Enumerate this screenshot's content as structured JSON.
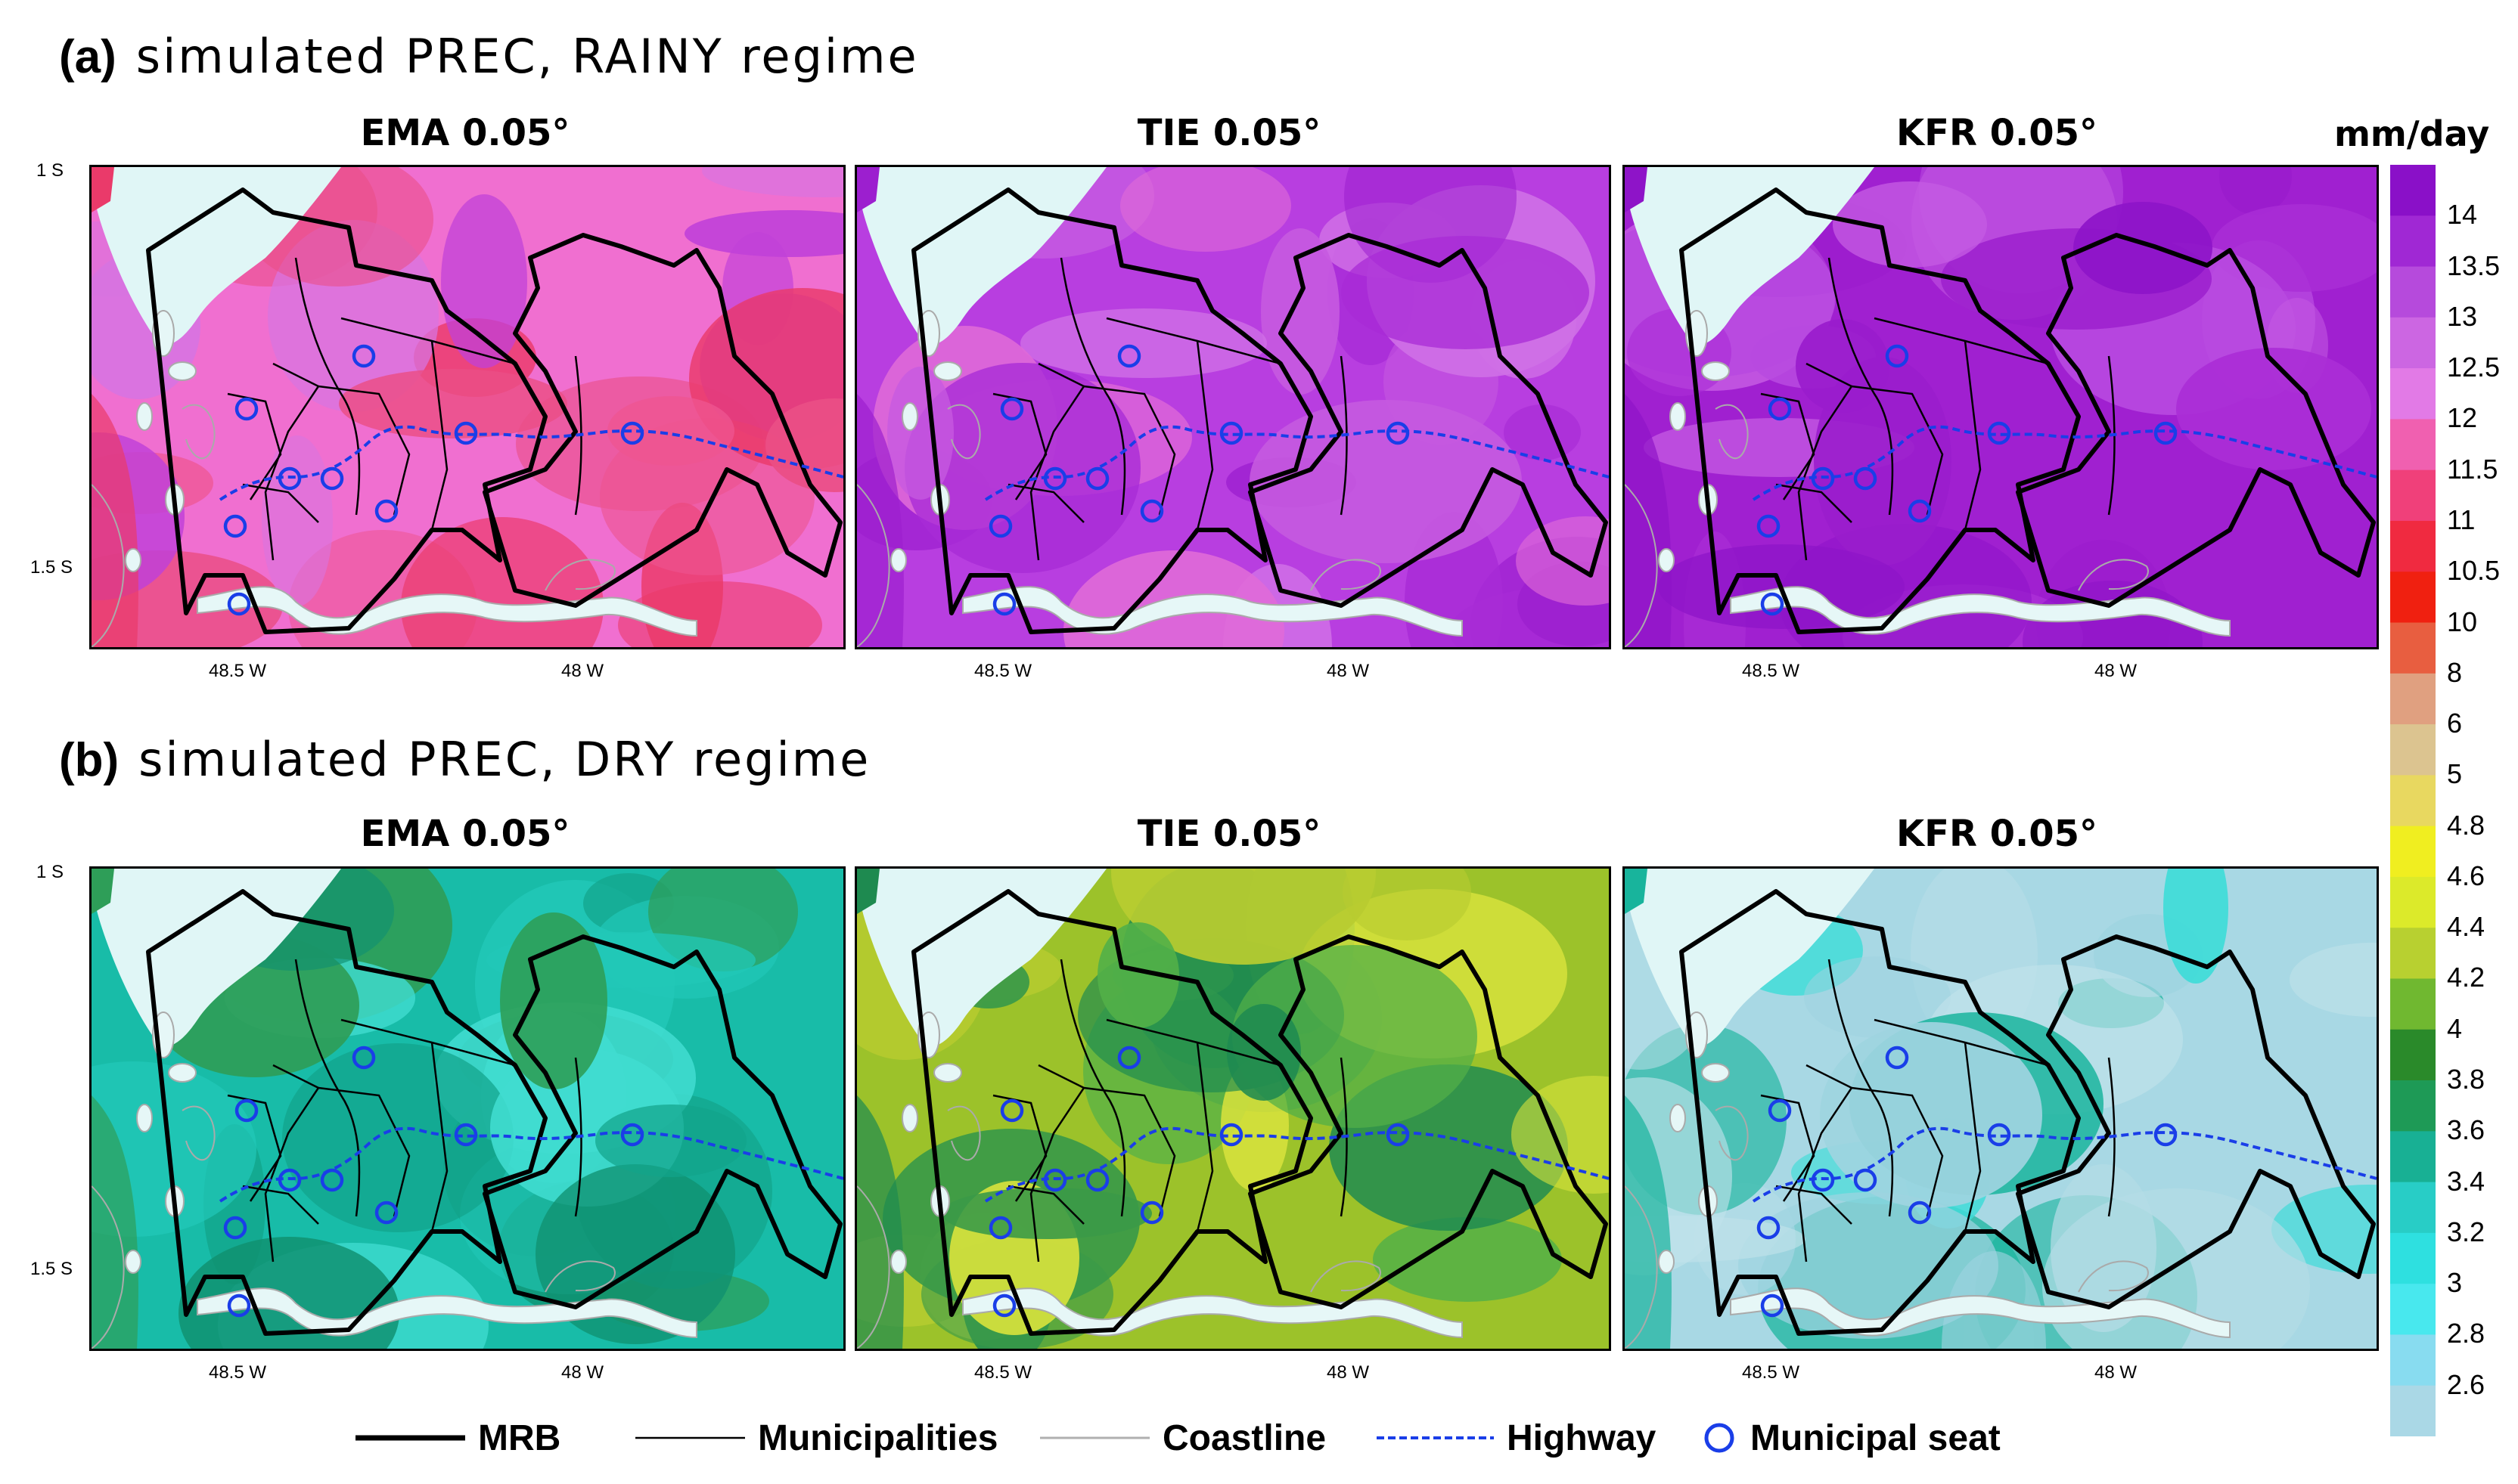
{
  "row_a": {
    "tag": "(a)",
    "title": "simulated PREC, RAINY regime"
  },
  "row_b": {
    "tag": "(b)",
    "title": "simulated PREC, DRY regime"
  },
  "panels": {
    "a1": {
      "title": "EMA 0.05°",
      "palette": [
        "#f06fd0",
        "#ea4e86",
        "#c040d8",
        "#ea3a6a",
        "#d874e0",
        "#ee5490"
      ]
    },
    "a2": {
      "title": "TIE 0.05°",
      "palette": [
        "#b83ee0",
        "#a82bd6",
        "#d070e6",
        "#9c1fcf",
        "#c65ae0",
        "#e06ad8"
      ]
    },
    "a3": {
      "title": "KFR 0.05°",
      "palette": [
        "#a020d0",
        "#9a1ccc",
        "#b84ae0",
        "#8e14c8",
        "#c45ae2",
        "#aa2ed6"
      ]
    },
    "b1": {
      "title": "EMA 0.05°",
      "palette": [
        "#18bca8",
        "#12a48a",
        "#40dcd0",
        "#2e9e58",
        "#22c8b8",
        "#109070"
      ]
    },
    "b2": {
      "title": "TIE 0.05°",
      "palette": [
        "#9cc22a",
        "#3a9a48",
        "#d8e23c",
        "#1e8a50",
        "#b8cc30",
        "#52b048"
      ]
    },
    "b3": {
      "title": "KFR 0.05°",
      "palette": [
        "#a8d8e4",
        "#b4dce6",
        "#40dcd8",
        "#18b49c",
        "#9ed4e0",
        "#c0e2ea"
      ]
    }
  },
  "axes": {
    "lat_top": "1 S",
    "lat_bottom": "1.5 S",
    "lon_left": "48.5 W",
    "lon_right": "48 W"
  },
  "colorbar": {
    "unit": "mm/day",
    "labels": [
      "14",
      "13.5",
      "13",
      "12.5",
      "12",
      "11.5",
      "11",
      "10.5",
      "10",
      "8",
      "6",
      "5",
      "4.8",
      "4.6",
      "4.4",
      "4.2",
      "4",
      "3.8",
      "3.6",
      "3.4",
      "3.2",
      "3",
      "2.8",
      "2.6"
    ],
    "colors": [
      "#8a10c8",
      "#a028d4",
      "#b64adc",
      "#cc66e2",
      "#e27ae6",
      "#f060b0",
      "#f0407a",
      "#f02a40",
      "#f02010",
      "#e85e40",
      "#e0a080",
      "#dcc490",
      "#e8d860",
      "#f0ee20",
      "#dcea2a",
      "#b8d030",
      "#70b830",
      "#2a8a2a",
      "#1e9a56",
      "#18b094",
      "#28cdc6",
      "#2ee0e0",
      "#48e8ee",
      "#88dcf0",
      "#aad8e6"
    ]
  },
  "legend": {
    "mrb": "MRB",
    "municipalities": "Municipalities",
    "coastline": "Coastline",
    "highway": "Highway",
    "seat": "Municipal seat",
    "colors": {
      "highway": "#1a3ee8",
      "coast": "#b0b0b0"
    }
  }
}
